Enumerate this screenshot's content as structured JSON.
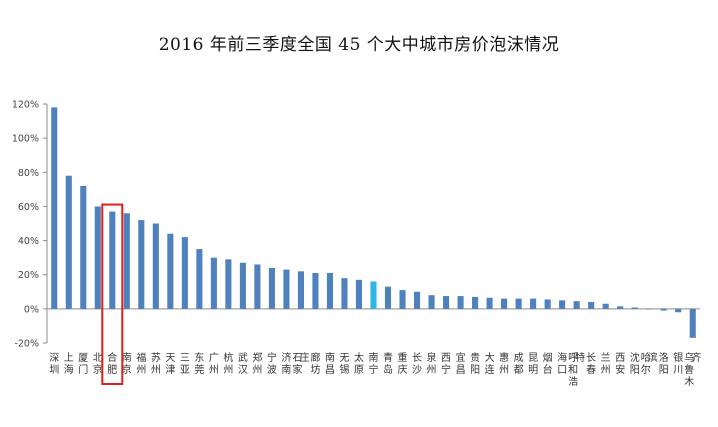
{
  "chart_data": {
    "type": "bar",
    "title": "2016 年前三季度全国 45 个大中城市房价泡沫情况",
    "xlabel": "",
    "ylabel": "",
    "ylim": [
      -0.2,
      1.2
    ],
    "yticks": [
      "-20%",
      "0%",
      "20%",
      "40%",
      "60%",
      "80%",
      "100%",
      "120%"
    ],
    "grid": false,
    "colors": {
      "bar": "#4F81BD",
      "highlight_bar": "#2FB5E6",
      "highlight_box": "#E0201B"
    },
    "highlighted_category": "南宁",
    "boxed_category": "合肥",
    "categories": [
      "深圳",
      "上海",
      "厦门",
      "北京",
      "合肥",
      "南京",
      "福州",
      "苏州",
      "天津",
      "三亚",
      "东莞",
      "广州",
      "杭州",
      "武汉",
      "郑州",
      "宁波",
      "济南",
      "石家庄",
      "廊坊",
      "南昌",
      "无锡",
      "太原",
      "南宁",
      "青岛",
      "重庆",
      "长沙",
      "泉州",
      "西宁",
      "宜昌",
      "贵阳",
      "大连",
      "惠州",
      "成都",
      "昆明",
      "烟台",
      "海口",
      "呼和浩特",
      "长春",
      "兰州",
      "西安",
      "沈阳",
      "哈尔滨",
      "洛阳",
      "银川",
      "乌鲁木齐"
    ],
    "values": [
      1.18,
      0.78,
      0.72,
      0.6,
      0.57,
      0.56,
      0.52,
      0.5,
      0.44,
      0.42,
      0.35,
      0.3,
      0.29,
      0.27,
      0.26,
      0.24,
      0.23,
      0.22,
      0.21,
      0.21,
      0.18,
      0.17,
      0.16,
      0.13,
      0.11,
      0.1,
      0.08,
      0.075,
      0.075,
      0.07,
      0.065,
      0.06,
      0.06,
      0.06,
      0.055,
      0.05,
      0.045,
      0.04,
      0.03,
      0.015,
      0.008,
      -0.003,
      -0.01,
      -0.02,
      -0.17
    ]
  }
}
